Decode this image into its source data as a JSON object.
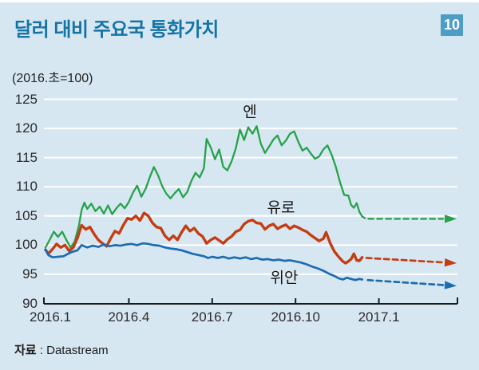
{
  "header": {
    "title": "달러 대비 주요국 통화가치",
    "badge": "10"
  },
  "chart": {
    "unit_note": "(2016.초=100)"
  },
  "footer": {
    "prefix": "자료",
    "separator": " : ",
    "name": "Datastream"
  },
  "chart_data": {
    "type": "line",
    "title": "달러 대비 주요국 통화가치",
    "index_note": "(2016.초=100)",
    "x_unit": "months since 2016.1",
    "ylim": [
      90,
      125
    ],
    "grid": "horizontal-white",
    "y_ticks": [
      125,
      120,
      115,
      110,
      105,
      100,
      95,
      90
    ],
    "x_ticks": [
      {
        "month": 0,
        "label": "2016.1"
      },
      {
        "month": 3,
        "label": "2016.4"
      },
      {
        "month": 6,
        "label": "2016.7"
      },
      {
        "month": 9,
        "label": "2016.10"
      },
      {
        "month": 12,
        "label": "2017.1"
      }
    ],
    "series": [
      {
        "name": "엔",
        "color": "#27a24a",
        "width": 2.3,
        "points": [
          [
            0,
            99.6
          ],
          [
            0.15,
            100.9
          ],
          [
            0.3,
            102.3
          ],
          [
            0.45,
            101.4
          ],
          [
            0.6,
            102.3
          ],
          [
            0.75,
            100.9
          ],
          [
            0.9,
            99.6
          ],
          [
            1.05,
            100.6
          ],
          [
            1.2,
            103.3
          ],
          [
            1.3,
            106.0
          ],
          [
            1.4,
            107.3
          ],
          [
            1.5,
            106.2
          ],
          [
            1.65,
            107.1
          ],
          [
            1.8,
            105.8
          ],
          [
            1.95,
            106.6
          ],
          [
            2.1,
            105.4
          ],
          [
            2.25,
            106.8
          ],
          [
            2.4,
            105.3
          ],
          [
            2.55,
            106.3
          ],
          [
            2.7,
            107.1
          ],
          [
            2.85,
            106.3
          ],
          [
            3.0,
            107.4
          ],
          [
            3.15,
            109.0
          ],
          [
            3.3,
            110.2
          ],
          [
            3.45,
            108.3
          ],
          [
            3.6,
            109.6
          ],
          [
            3.75,
            111.6
          ],
          [
            3.9,
            113.4
          ],
          [
            4.05,
            112.0
          ],
          [
            4.2,
            110.1
          ],
          [
            4.35,
            108.8
          ],
          [
            4.5,
            108.0
          ],
          [
            4.65,
            108.9
          ],
          [
            4.8,
            109.6
          ],
          [
            4.95,
            108.2
          ],
          [
            5.1,
            109.1
          ],
          [
            5.25,
            111.0
          ],
          [
            5.4,
            112.4
          ],
          [
            5.55,
            111.6
          ],
          [
            5.7,
            113.2
          ],
          [
            5.8,
            118.2
          ],
          [
            5.95,
            116.7
          ],
          [
            6.1,
            114.7
          ],
          [
            6.25,
            116.4
          ],
          [
            6.4,
            113.4
          ],
          [
            6.55,
            112.8
          ],
          [
            6.7,
            114.4
          ],
          [
            6.85,
            116.6
          ],
          [
            7.0,
            119.8
          ],
          [
            7.15,
            118.0
          ],
          [
            7.3,
            120.2
          ],
          [
            7.45,
            119.1
          ],
          [
            7.6,
            120.4
          ],
          [
            7.75,
            117.4
          ],
          [
            7.9,
            115.8
          ],
          [
            8.05,
            116.9
          ],
          [
            8.2,
            118.1
          ],
          [
            8.35,
            118.8
          ],
          [
            8.5,
            117.1
          ],
          [
            8.65,
            117.9
          ],
          [
            8.8,
            119.1
          ],
          [
            8.95,
            119.5
          ],
          [
            9.1,
            117.7
          ],
          [
            9.25,
            116.2
          ],
          [
            9.4,
            116.7
          ],
          [
            9.55,
            115.7
          ],
          [
            9.7,
            114.8
          ],
          [
            9.85,
            115.2
          ],
          [
            10.0,
            116.4
          ],
          [
            10.15,
            117.1
          ],
          [
            10.3,
            115.5
          ],
          [
            10.45,
            113.4
          ],
          [
            10.6,
            110.8
          ],
          [
            10.75,
            108.6
          ],
          [
            10.9,
            108.5
          ],
          [
            11.0,
            106.9
          ],
          [
            11.1,
            106.4
          ],
          [
            11.2,
            107.2
          ],
          [
            11.3,
            105.7
          ],
          [
            11.4,
            104.9
          ],
          [
            11.5,
            104.6
          ]
        ],
        "projection": [
          [
            11.62,
            104.5
          ],
          [
            14.8,
            104.5
          ]
        ]
      },
      {
        "name": "유로",
        "color": "#c43d12",
        "width": 3.4,
        "points": [
          [
            0,
            99.2
          ],
          [
            0.1,
            98.5
          ],
          [
            0.25,
            99.3
          ],
          [
            0.4,
            100.2
          ],
          [
            0.55,
            99.6
          ],
          [
            0.7,
            100.0
          ],
          [
            0.85,
            99.0
          ],
          [
            1.0,
            99.6
          ],
          [
            1.15,
            101.2
          ],
          [
            1.3,
            103.4
          ],
          [
            1.45,
            102.7
          ],
          [
            1.6,
            103.1
          ],
          [
            1.75,
            101.9
          ],
          [
            1.9,
            100.9
          ],
          [
            2.05,
            100.3
          ],
          [
            2.2,
            99.8
          ],
          [
            2.35,
            101.2
          ],
          [
            2.5,
            102.4
          ],
          [
            2.65,
            102.0
          ],
          [
            2.8,
            103.4
          ],
          [
            2.95,
            104.6
          ],
          [
            3.1,
            104.4
          ],
          [
            3.25,
            105.0
          ],
          [
            3.4,
            104.2
          ],
          [
            3.55,
            105.5
          ],
          [
            3.7,
            105.0
          ],
          [
            3.85,
            103.8
          ],
          [
            4.0,
            103.1
          ],
          [
            4.15,
            102.9
          ],
          [
            4.3,
            101.6
          ],
          [
            4.45,
            100.9
          ],
          [
            4.6,
            101.6
          ],
          [
            4.75,
            100.9
          ],
          [
            4.9,
            102.2
          ],
          [
            5.05,
            103.3
          ],
          [
            5.2,
            102.4
          ],
          [
            5.35,
            102.9
          ],
          [
            5.5,
            102.0
          ],
          [
            5.65,
            101.5
          ],
          [
            5.8,
            100.3
          ],
          [
            5.95,
            100.9
          ],
          [
            6.1,
            101.3
          ],
          [
            6.25,
            100.8
          ],
          [
            6.4,
            100.3
          ],
          [
            6.55,
            101.0
          ],
          [
            6.7,
            101.5
          ],
          [
            6.85,
            102.3
          ],
          [
            7.0,
            102.6
          ],
          [
            7.15,
            103.6
          ],
          [
            7.3,
            104.1
          ],
          [
            7.45,
            104.3
          ],
          [
            7.6,
            103.8
          ],
          [
            7.75,
            103.7
          ],
          [
            7.9,
            102.7
          ],
          [
            8.05,
            103.3
          ],
          [
            8.2,
            103.6
          ],
          [
            8.35,
            102.8
          ],
          [
            8.5,
            103.2
          ],
          [
            8.65,
            103.5
          ],
          [
            8.8,
            102.8
          ],
          [
            8.95,
            103.3
          ],
          [
            9.1,
            103.0
          ],
          [
            9.25,
            102.6
          ],
          [
            9.4,
            102.3
          ],
          [
            9.55,
            101.7
          ],
          [
            9.7,
            101.2
          ],
          [
            9.85,
            100.7
          ],
          [
            10.0,
            101.1
          ],
          [
            10.1,
            102.2
          ],
          [
            10.25,
            100.3
          ],
          [
            10.4,
            98.9
          ],
          [
            10.55,
            98.0
          ],
          [
            10.7,
            97.2
          ],
          [
            10.8,
            96.9
          ],
          [
            10.9,
            97.2
          ],
          [
            11.0,
            97.6
          ],
          [
            11.1,
            98.5
          ],
          [
            11.2,
            97.4
          ],
          [
            11.3,
            97.3
          ],
          [
            11.4,
            97.9
          ]
        ],
        "projection": [
          [
            11.55,
            97.8
          ],
          [
            14.8,
            96.9
          ]
        ]
      },
      {
        "name": "위안",
        "color": "#1d6cb1",
        "width": 2.7,
        "points": [
          [
            0,
            99.2
          ],
          [
            0.1,
            98.3
          ],
          [
            0.25,
            97.9
          ],
          [
            0.45,
            98.0
          ],
          [
            0.65,
            98.1
          ],
          [
            0.85,
            98.6
          ],
          [
            1.0,
            98.9
          ],
          [
            1.15,
            99.1
          ],
          [
            1.3,
            100.0
          ],
          [
            1.5,
            99.6
          ],
          [
            1.7,
            99.9
          ],
          [
            1.9,
            99.7
          ],
          [
            2.1,
            100.1
          ],
          [
            2.3,
            99.8
          ],
          [
            2.5,
            100.0
          ],
          [
            2.7,
            99.9
          ],
          [
            2.9,
            100.1
          ],
          [
            3.1,
            100.2
          ],
          [
            3.3,
            100.0
          ],
          [
            3.5,
            100.3
          ],
          [
            3.7,
            100.2
          ],
          [
            3.9,
            100.0
          ],
          [
            4.1,
            99.9
          ],
          [
            4.3,
            99.6
          ],
          [
            4.5,
            99.4
          ],
          [
            4.7,
            99.3
          ],
          [
            4.9,
            99.1
          ],
          [
            5.1,
            98.8
          ],
          [
            5.3,
            98.5
          ],
          [
            5.5,
            98.3
          ],
          [
            5.7,
            98.1
          ],
          [
            5.85,
            97.8
          ],
          [
            6.0,
            98.0
          ],
          [
            6.2,
            97.8
          ],
          [
            6.4,
            98.0
          ],
          [
            6.6,
            97.7
          ],
          [
            6.8,
            97.9
          ],
          [
            7.0,
            97.7
          ],
          [
            7.2,
            97.9
          ],
          [
            7.4,
            97.6
          ],
          [
            7.6,
            97.8
          ],
          [
            7.8,
            97.5
          ],
          [
            8.0,
            97.6
          ],
          [
            8.2,
            97.4
          ],
          [
            8.4,
            97.5
          ],
          [
            8.6,
            97.3
          ],
          [
            8.8,
            97.4
          ],
          [
            9.0,
            97.2
          ],
          [
            9.2,
            97.0
          ],
          [
            9.4,
            96.7
          ],
          [
            9.6,
            96.3
          ],
          [
            9.8,
            96.0
          ],
          [
            10.0,
            95.6
          ],
          [
            10.2,
            95.1
          ],
          [
            10.4,
            94.7
          ],
          [
            10.55,
            94.3
          ],
          [
            10.7,
            94.1
          ],
          [
            10.85,
            94.4
          ],
          [
            11.0,
            94.2
          ],
          [
            11.15,
            94.0
          ],
          [
            11.3,
            94.2
          ],
          [
            11.4,
            94.1
          ]
        ],
        "projection": [
          [
            11.6,
            94.0
          ],
          [
            14.8,
            93.0
          ]
        ]
      }
    ],
    "legend": "inline-labels",
    "source": "자료 : Datastream"
  }
}
